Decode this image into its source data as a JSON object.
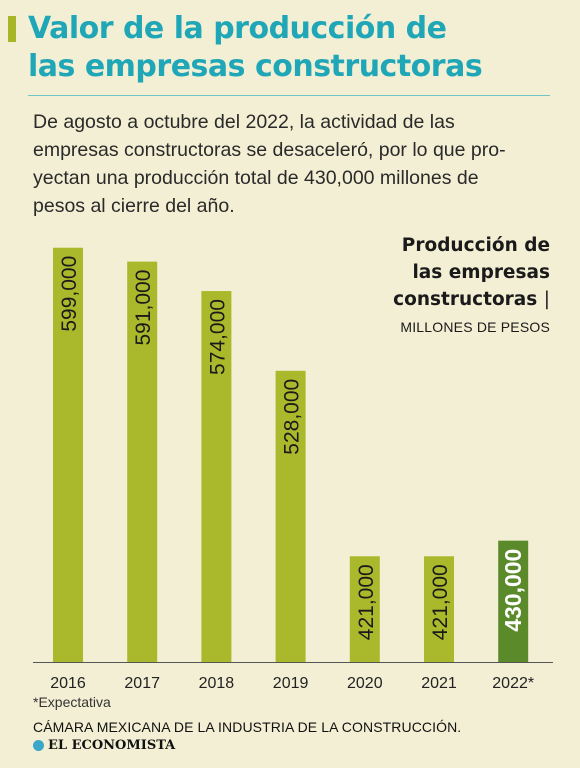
{
  "header": {
    "title_lines": [
      "Valor de la producción de",
      "las empresas constructoras"
    ],
    "intro_lines": [
      "De agosto a octubre del 2022, la actividad de las",
      "empresas constructoras se desaceleró, por lo que pro-",
      "yectan una producción total de 430,000 millones de",
      "pesos al cierre del año."
    ]
  },
  "legend": {
    "title_lines": [
      "Producción de",
      "las empresas",
      "constructoras"
    ],
    "separator": "|",
    "unit": "MILLONES DE PESOS"
  },
  "chart_data": {
    "type": "bar",
    "categories": [
      "2016",
      "2017",
      "2018",
      "2019",
      "2020",
      "2021",
      "2022*"
    ],
    "values": [
      599000,
      591000,
      574000,
      528000,
      421000,
      421000,
      430000
    ],
    "value_labels": [
      "599,000",
      "591,000",
      "574,000",
      "528,000",
      "421,000",
      "421,000",
      "430,000"
    ],
    "highlight_index": 6,
    "colors": {
      "bar": "#aab92c",
      "highlight": "#5b8a2a",
      "axis": "#555555"
    },
    "ylim": [
      360000,
      600000
    ],
    "grid": false
  },
  "footnote": "*Expectativa",
  "source": "CÁMARA MEXICANA DE LA INDUSTRIA DE LA CONSTRUCCIÓN.",
  "brand": {
    "name": "EL ECONOMISTA",
    "icon": "globe-icon"
  }
}
